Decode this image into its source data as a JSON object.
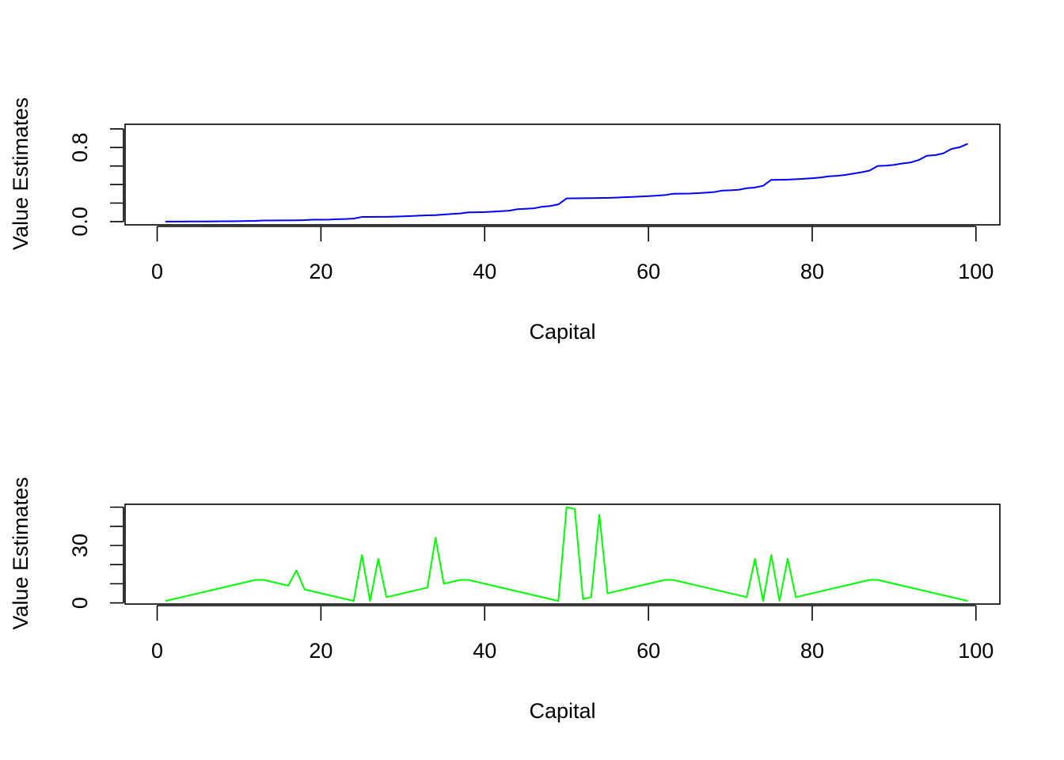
{
  "chart_data": [
    {
      "type": "line",
      "xlabel": "Capital",
      "ylabel": "Value Estimates",
      "xlim": [
        -3.92,
        102.92
      ],
      "ylim": [
        -0.035,
        1.05
      ],
      "x_ticks": [
        0,
        20,
        40,
        60,
        80,
        100
      ],
      "x_tick_labels": [
        "0",
        "20",
        "40",
        "60",
        "80",
        "100"
      ],
      "y_ticks": [
        0.0,
        0.2,
        0.4,
        0.6,
        0.8,
        1.0
      ],
      "y_tick_labels": [
        "0.0",
        "",
        "",
        "",
        "0.8",
        ""
      ],
      "grid": false,
      "series": [
        {
          "color": "#0000ff",
          "x": [
            1,
            2,
            3,
            4,
            5,
            6,
            7,
            8,
            9,
            10,
            11,
            12,
            13,
            14,
            15,
            16,
            17,
            18,
            19,
            20,
            21,
            22,
            23,
            24,
            25,
            26,
            27,
            28,
            29,
            30,
            31,
            32,
            33,
            34,
            35,
            36,
            37,
            38,
            39,
            40,
            41,
            42,
            43,
            44,
            45,
            46,
            47,
            48,
            49,
            50,
            51,
            52,
            53,
            54,
            55,
            56,
            57,
            58,
            59,
            60,
            61,
            62,
            63,
            64,
            65,
            66,
            67,
            68,
            69,
            70,
            71,
            72,
            73,
            74,
            75,
            76,
            77,
            78,
            79,
            80,
            81,
            82,
            83,
            84,
            85,
            86,
            87,
            88,
            89,
            90,
            91,
            92,
            93,
            94,
            95,
            96,
            97,
            98,
            99
          ],
          "values": [
            0.0,
            0.0003,
            0.0006,
            0.0009,
            0.0013,
            0.0018,
            0.0024,
            0.003,
            0.004,
            0.005,
            0.0065,
            0.008,
            0.012,
            0.0125,
            0.013,
            0.0135,
            0.014,
            0.016,
            0.02,
            0.021,
            0.022,
            0.026,
            0.028,
            0.032,
            0.05,
            0.0505,
            0.051,
            0.052,
            0.054,
            0.057,
            0.06,
            0.064,
            0.067,
            0.07,
            0.076,
            0.082,
            0.088,
            0.1,
            0.101,
            0.103,
            0.107,
            0.112,
            0.118,
            0.134,
            0.138,
            0.143,
            0.16,
            0.168,
            0.186,
            0.25,
            0.251,
            0.252,
            0.253,
            0.254,
            0.256,
            0.259,
            0.263,
            0.266,
            0.27,
            0.275,
            0.28,
            0.286,
            0.3,
            0.301,
            0.303,
            0.307,
            0.312,
            0.318,
            0.335,
            0.338,
            0.343,
            0.36,
            0.368,
            0.386,
            0.45,
            0.451,
            0.453,
            0.457,
            0.462,
            0.468,
            0.475,
            0.488,
            0.494,
            0.503,
            0.517,
            0.532,
            0.55,
            0.6,
            0.604,
            0.612,
            0.627,
            0.638,
            0.664,
            0.71,
            0.717,
            0.736,
            0.784,
            0.802,
            0.84
          ]
        }
      ]
    },
    {
      "type": "line",
      "xlabel": "Capital",
      "ylabel": "Value Estimates",
      "xlim": [
        -3.92,
        102.92
      ],
      "ylim": [
        -0.6,
        51.5
      ],
      "x_ticks": [
        0,
        20,
        40,
        60,
        80,
        100
      ],
      "x_tick_labels": [
        "0",
        "20",
        "40",
        "60",
        "80",
        "100"
      ],
      "y_ticks": [
        0,
        10,
        20,
        30,
        40,
        50
      ],
      "y_tick_labels": [
        "0",
        "",
        "",
        "30",
        "",
        ""
      ],
      "grid": false,
      "series": [
        {
          "color": "#00ff00",
          "x": [
            1,
            12,
            13,
            16,
            17,
            18,
            24,
            25,
            26,
            27,
            28,
            33,
            34,
            35,
            37,
            38,
            49,
            50,
            51,
            52,
            53,
            54,
            55,
            62,
            63,
            72,
            73,
            74,
            75,
            76,
            77,
            78,
            87,
            88,
            99
          ],
          "values": [
            1,
            12,
            12,
            9,
            17,
            7,
            1,
            25,
            1,
            23,
            3,
            8,
            34,
            10,
            12,
            12,
            1,
            50,
            49,
            2,
            3,
            46,
            5,
            12,
            12,
            3,
            23,
            1,
            25,
            1,
            23,
            3,
            12,
            12,
            1
          ]
        }
      ]
    }
  ]
}
